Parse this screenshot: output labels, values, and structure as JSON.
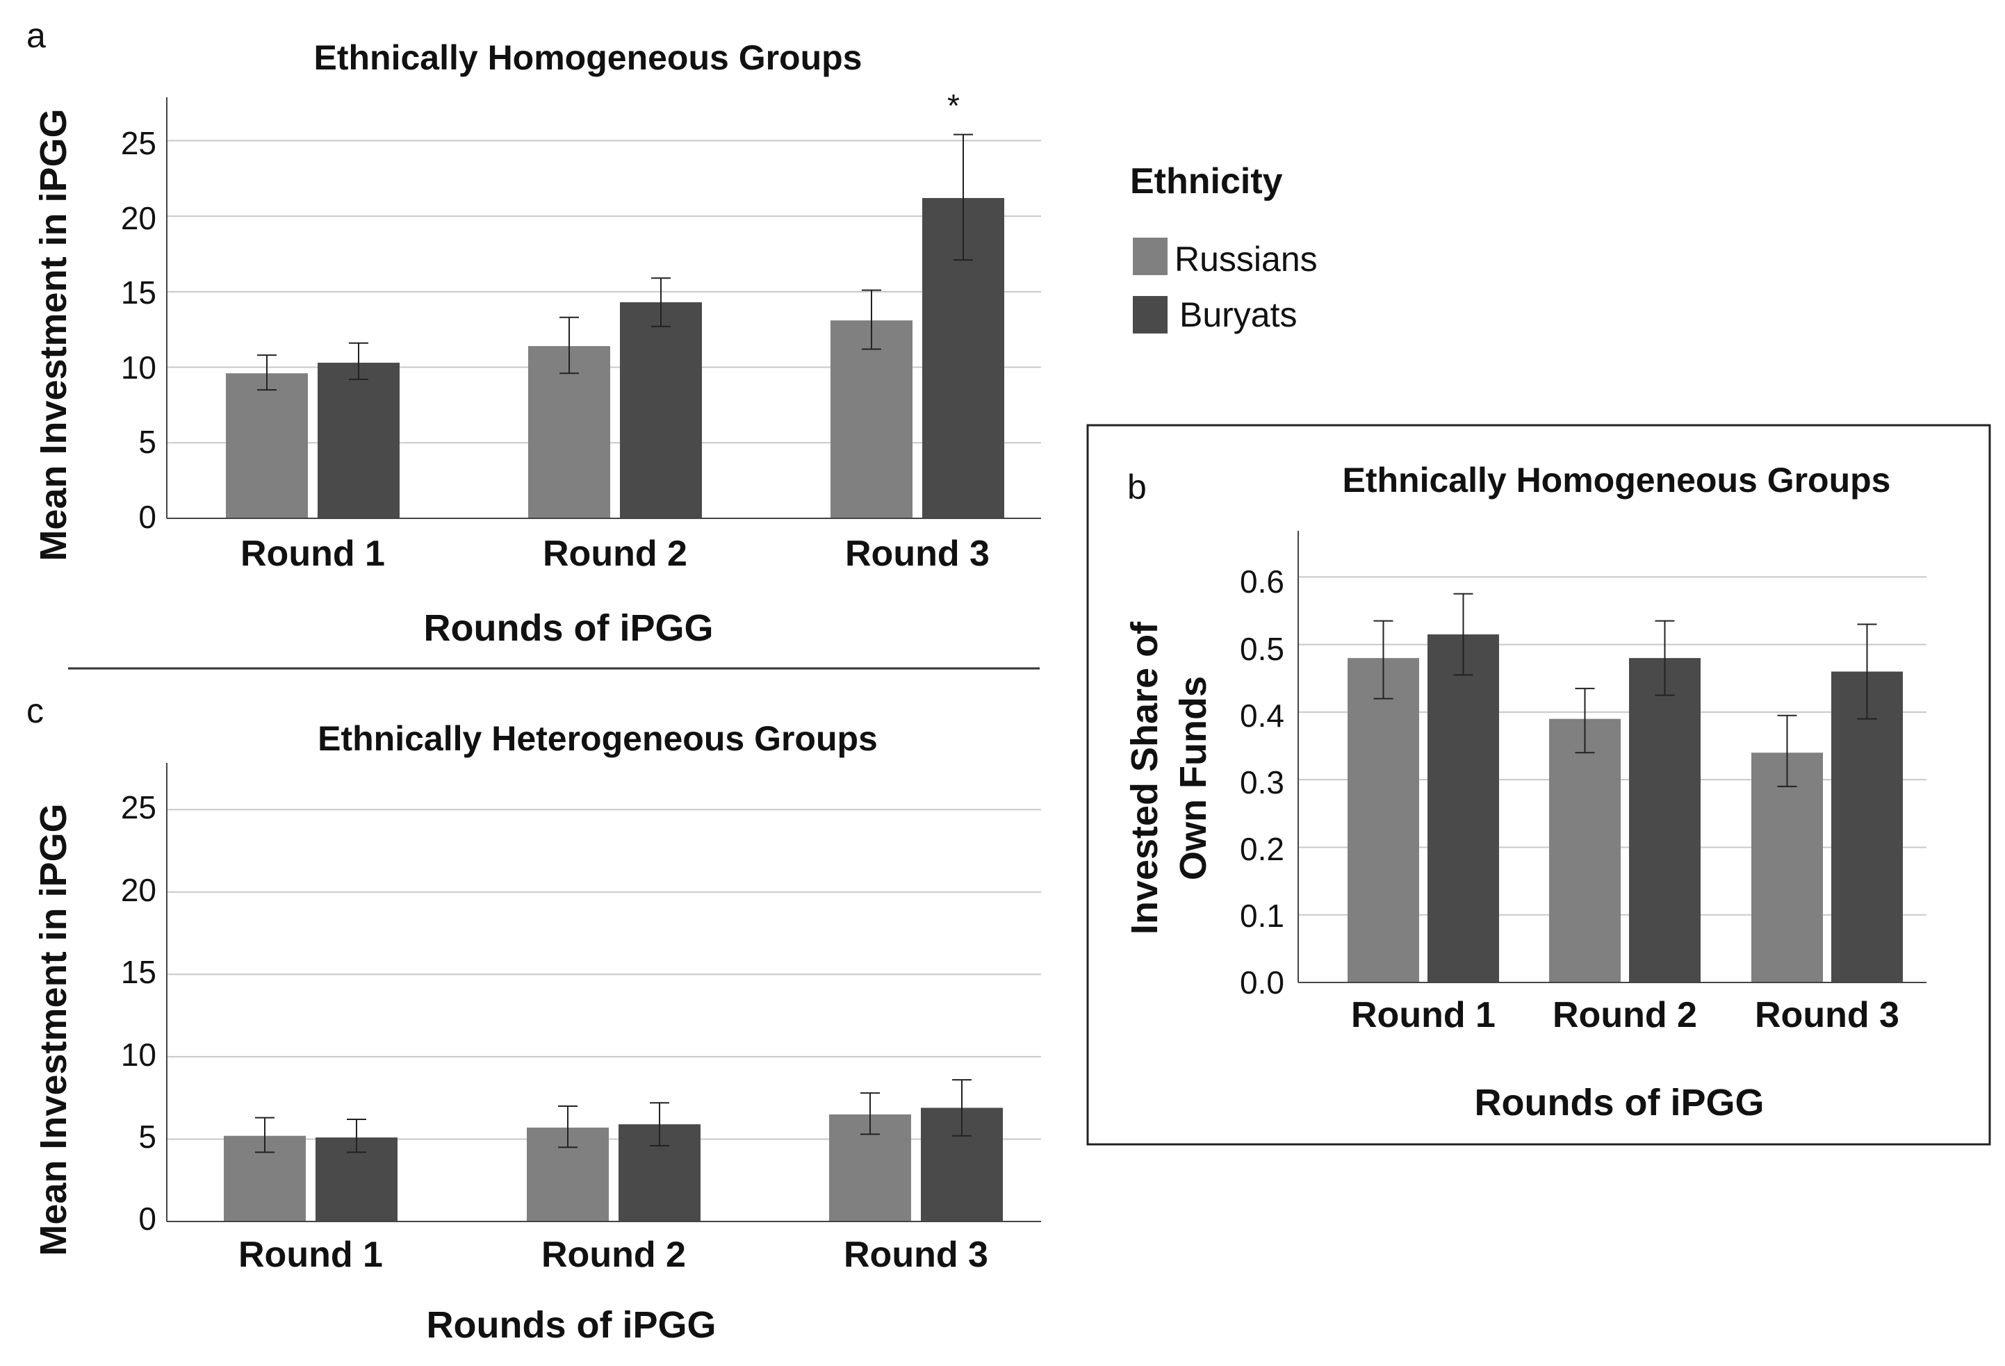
{
  "chart_data": [
    {
      "panel": "a",
      "type": "bar",
      "title": "Ethnically Homogeneous Groups",
      "xlabel": "Rounds of iPGG",
      "ylabel": "Mean Investment in iPGG",
      "categories": [
        "Round 1",
        "Round 2",
        "Round 3"
      ],
      "ylim": [
        0,
        27.5
      ],
      "yticks": [
        "0",
        "5",
        "10",
        "15",
        "20",
        "25"
      ],
      "ytick_values": [
        0,
        5,
        10,
        15,
        20,
        25
      ],
      "grid": true,
      "series": [
        {
          "name": "Russians",
          "values": [
            9.6,
            11.4,
            13.1
          ],
          "error_low": [
            8.5,
            9.6,
            11.2
          ],
          "error_high": [
            10.8,
            13.3,
            15.1
          ]
        },
        {
          "name": "Buryats",
          "values": [
            10.3,
            14.3,
            21.2
          ],
          "error_low": [
            9.2,
            12.7,
            17.1
          ],
          "error_high": [
            11.6,
            15.9,
            25.4
          ]
        }
      ],
      "annotations": [
        {
          "text": "*",
          "category": "Round 3",
          "series": "Buryats"
        }
      ]
    },
    {
      "panel": "b",
      "type": "bar",
      "title": "Ethnically Homogeneous Groups",
      "xlabel": "Rounds of iPGG",
      "ylabel": [
        "Invested Share of",
        "Own Funds"
      ],
      "categories": [
        "Round 1",
        "Round 2",
        "Round 3"
      ],
      "ylim": [
        0,
        0.66
      ],
      "yticks": [
        "0.0",
        "0.1",
        "0.2",
        "0.3",
        "0.4",
        "0.5",
        "0.6"
      ],
      "ytick_values": [
        0,
        0.1,
        0.2,
        0.3,
        0.4,
        0.5,
        0.6
      ],
      "grid": true,
      "series": [
        {
          "name": "Russians",
          "values": [
            0.48,
            0.39,
            0.34
          ],
          "error_low": [
            0.42,
            0.34,
            0.29
          ],
          "error_high": [
            0.535,
            0.435,
            0.395
          ]
        },
        {
          "name": "Buryats",
          "values": [
            0.515,
            0.48,
            0.46
          ],
          "error_low": [
            0.455,
            0.425,
            0.39
          ],
          "error_high": [
            0.575,
            0.535,
            0.53
          ]
        }
      ],
      "annotations": []
    },
    {
      "panel": "c",
      "type": "bar",
      "title": "Ethnically Heterogeneous Groups",
      "xlabel": "Rounds of iPGG",
      "ylabel": "Mean Investment in iPGG",
      "categories": [
        "Round 1",
        "Round 2",
        "Round 3"
      ],
      "ylim": [
        0,
        27.5
      ],
      "yticks": [
        "0",
        "5",
        "10",
        "15",
        "20",
        "25"
      ],
      "ytick_values": [
        0,
        5,
        10,
        15,
        20,
        25
      ],
      "grid": true,
      "series": [
        {
          "name": "Russians",
          "values": [
            5.2,
            5.7,
            6.5
          ],
          "error_low": [
            4.2,
            4.5,
            5.3
          ],
          "error_high": [
            6.3,
            7.0,
            7.8
          ]
        },
        {
          "name": "Buryats",
          "values": [
            5.1,
            5.9,
            6.9
          ],
          "error_low": [
            4.2,
            4.6,
            5.2
          ],
          "error_high": [
            6.2,
            7.2,
            8.6
          ]
        }
      ],
      "annotations": []
    }
  ],
  "legend": {
    "title": "Ethnicity",
    "placement": "top-right",
    "items": [
      {
        "label": "Russians",
        "color": "#808080"
      },
      {
        "label": "Buryats",
        "color": "#4a4a4a"
      }
    ]
  },
  "colors": {
    "Russians": "#808080",
    "Buryats": "#4a4a4a",
    "grid": "#c8c8c8",
    "axis": "#444444",
    "error": "#222222"
  }
}
